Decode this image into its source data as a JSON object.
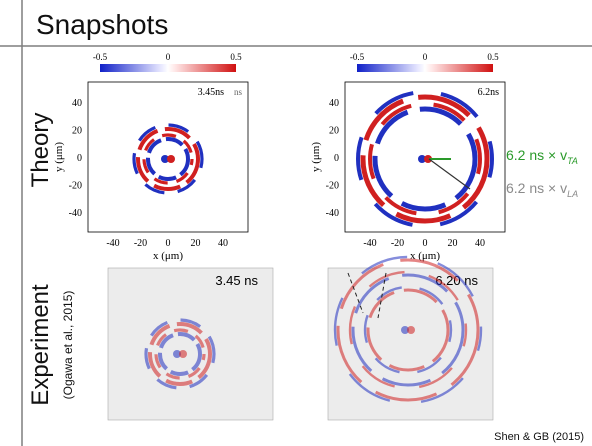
{
  "header": {
    "title": "Snapshots"
  },
  "rows": [
    {
      "label": "Theory"
    },
    {
      "label": "Experiment",
      "note": "(Ogawa et al., 2015)"
    }
  ],
  "theory_panels": [
    {
      "colorbar_ticks": [
        "-0.5",
        "0",
        "0.5"
      ],
      "time": "3.45ns",
      "time_suffix": "ns",
      "y_label": "y (μm)",
      "x_label": "x (μm)",
      "y_ticks": [
        "40",
        "20",
        "0",
        "-20",
        "-40"
      ],
      "x_ticks": [
        "-40",
        "-20",
        "0",
        "20",
        "40"
      ]
    },
    {
      "colorbar_ticks": [
        "-0.5",
        "0",
        "0.5"
      ],
      "time": "6.2ns",
      "y_label": "y (μm)",
      "x_label": "x (μm)",
      "y_ticks": [
        "40",
        "20",
        "0",
        "-20",
        "-40"
      ],
      "x_ticks": [
        "-40",
        "-20",
        "0",
        "20",
        "40"
      ]
    }
  ],
  "annotations": [
    {
      "text": "6.2 ns × v",
      "subscript": "TA"
    },
    {
      "text": "6.2 ns × v",
      "subscript": "LA"
    }
  ],
  "experiment_panels": [
    {
      "time": "3.45 ns"
    },
    {
      "time": "6.20 ns"
    }
  ],
  "credit": "Shen & GB (2015)"
}
